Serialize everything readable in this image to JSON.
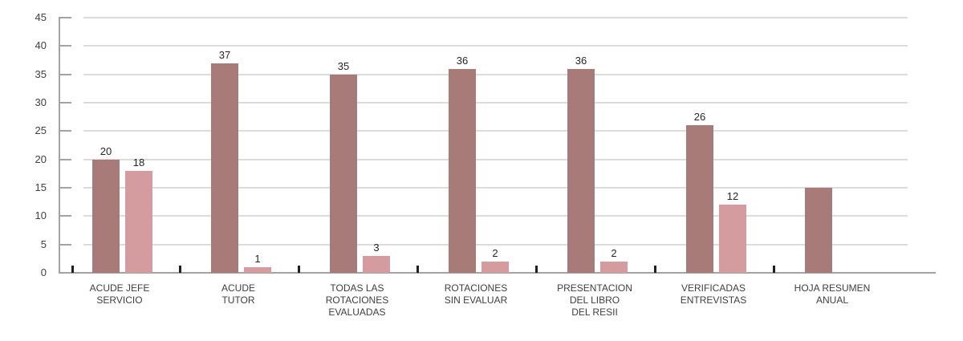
{
  "chart_data": {
    "type": "bar",
    "title": "",
    "xlabel": "",
    "ylabel": "",
    "ylim": [
      0,
      45
    ],
    "yticks": [
      0,
      5,
      10,
      15,
      20,
      25,
      30,
      35,
      40,
      45
    ],
    "grid": true,
    "legend_position": "none",
    "categories": [
      "ACUDE JEFE SERVICIO",
      "ACUDE TUTOR",
      "TODAS LAS ROTACIONES EVALUADAS",
      "ROTACIONES SIN EVALUAR",
      "PRESENTACION DEL LIBRO DEL RESII",
      "VERIFICADAS ENTREVISTAS",
      "HOJA RESUMEN ANUAL"
    ],
    "category_label_lines": [
      [
        "ACUDE JEFE",
        "SERVICIO"
      ],
      [
        "ACUDE",
        "TUTOR"
      ],
      [
        "TODAS LAS",
        "ROTACIONES",
        "EVALUADAS"
      ],
      [
        "ROTACIONES",
        "SIN EVALUAR"
      ],
      [
        "PRESENTACION",
        "DEL LIBRO",
        "DEL RESII"
      ],
      [
        "VERIFICADAS",
        "ENTREVISTAS"
      ],
      [
        "HOJA RESUMEN",
        "ANUAL"
      ]
    ],
    "series": [
      {
        "name": "series-1",
        "color": "#a87b79",
        "values": [
          20,
          37,
          35,
          36,
          36,
          26,
          15
        ],
        "data_labels": [
          "20",
          "37",
          "35",
          "36",
          "36",
          "26",
          ""
        ]
      },
      {
        "name": "series-2",
        "color": "#d49c9e",
        "values": [
          18,
          1,
          3,
          2,
          2,
          12,
          null
        ],
        "data_labels": [
          "18",
          "1",
          "3",
          "2",
          "2",
          "12",
          ""
        ]
      }
    ]
  },
  "style": {
    "background": "#ffffff",
    "gridline_color": "#dcdcdc",
    "axis_line_color": "#a3a3a3",
    "y_tick_color": "#a3a3a3",
    "x_tick_color": "#1f1f1f",
    "y_label_color": "#404040",
    "category_label_color": "#3f3f3f",
    "value_label_color": "#262626"
  }
}
